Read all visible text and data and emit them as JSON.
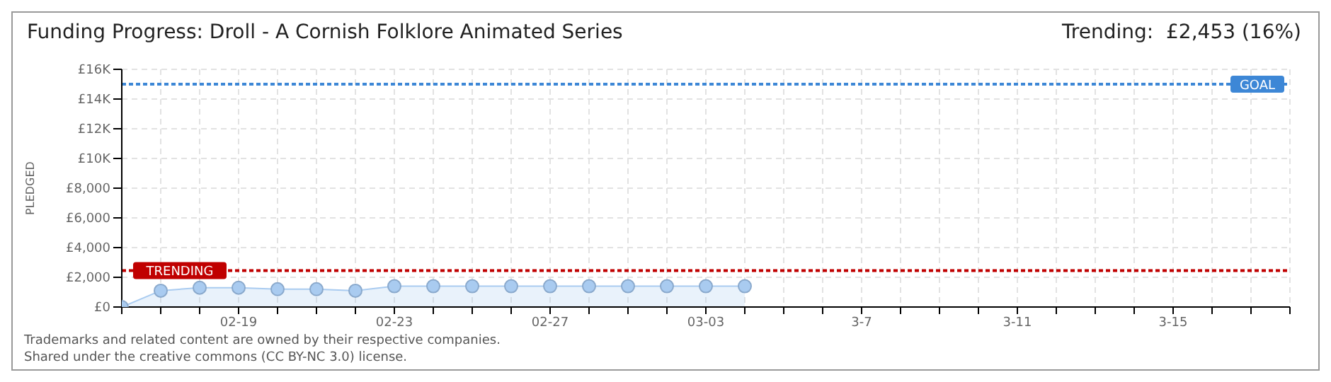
{
  "chart_data": {
    "type": "area",
    "title": "Funding Progress: Droll - A Cornish Folklore Animated Series",
    "subtitle": "Trending:  £2,453 (16%)",
    "ylabel": "PLEDGED",
    "x": [
      "--02-16",
      "--02-17",
      "--02-18",
      "--02-19",
      "--02-20",
      "--02-21",
      "--02-22",
      "--02-23",
      "--02-24",
      "--02-25",
      "--02-26",
      "--02-27",
      "--02-28",
      "--03-01",
      "--03-02",
      "--03-03",
      "--03-04"
    ],
    "series": [
      {
        "color": "#a9cbf0",
        "values": [
          0,
          1100,
          1300,
          1300,
          1200,
          1200,
          1100,
          1400,
          1400,
          1400,
          1400,
          1400,
          1400,
          1400,
          1400,
          1400,
          1400
        ]
      }
    ],
    "xlim": [
      "--02-16",
      "--03-18"
    ],
    "xticks": [
      {
        "value": "--02-16",
        "label": null
      },
      {
        "value": "--02-17",
        "label": null
      },
      {
        "value": "--02-18",
        "label": null
      },
      {
        "value": "--02-19",
        "label": "02-19"
      },
      {
        "value": "--02-20",
        "label": null
      },
      {
        "value": "--02-21",
        "label": null
      },
      {
        "value": "--02-22",
        "label": null
      },
      {
        "value": "--02-23",
        "label": "02-23"
      },
      {
        "value": "--02-24",
        "label": null
      },
      {
        "value": "--02-25",
        "label": null
      },
      {
        "value": "--02-26",
        "label": null
      },
      {
        "value": "--02-27",
        "label": "02-27"
      },
      {
        "value": "--02-28",
        "label": null
      },
      {
        "value": "--03-01",
        "label": null
      },
      {
        "value": "--03-02",
        "label": null
      },
      {
        "value": "--03-03",
        "label": "03-03"
      },
      {
        "value": "--03-04",
        "label": null
      },
      {
        "value": "--03-05",
        "label": null
      },
      {
        "value": "--03-06",
        "label": null
      },
      {
        "value": "--03-07",
        "label": "3-7"
      },
      {
        "value": "--03-08",
        "label": null
      },
      {
        "value": "--03-09",
        "label": null
      },
      {
        "value": "--03-10",
        "label": null
      },
      {
        "value": "--03-11",
        "label": "3-11"
      },
      {
        "value": "--03-12",
        "label": null
      },
      {
        "value": "--03-13",
        "label": null
      },
      {
        "value": "--03-14",
        "label": null
      },
      {
        "value": "--03-15",
        "label": "3-15"
      },
      {
        "value": "--03-16",
        "label": null
      },
      {
        "value": "--03-17",
        "label": null
      },
      {
        "value": "--03-18",
        "label": null
      }
    ],
    "ylim": [
      0,
      16000
    ],
    "yticks": [
      {
        "value": 0,
        "label": "£0"
      },
      {
        "value": 2000,
        "label": "£2,000"
      },
      {
        "value": 4000,
        "label": "£4,000"
      },
      {
        "value": 6000,
        "label": "£6,000"
      },
      {
        "value": 8000,
        "label": "£8,000"
      },
      {
        "value": 10000,
        "label": "£10K"
      },
      {
        "value": 12000,
        "label": "£12K"
      },
      {
        "value": 14000,
        "label": "£14K"
      },
      {
        "value": 16000,
        "label": "£16K"
      }
    ],
    "ref_lines": [
      {
        "axis": "y",
        "value": 15000,
        "label": "GOAL",
        "color": "#3d87d6",
        "line_style": "dotted"
      },
      {
        "axis": "y",
        "value": 2453,
        "label": "TRENDING",
        "color": "#c00000",
        "line_style": "dotted"
      }
    ],
    "grid": true,
    "marker": "circle",
    "annotations": [
      "Trademarks and related content are owned by their respective companies.",
      "Shared under the creative commons (CC BY-NC 3.0) license."
    ]
  }
}
